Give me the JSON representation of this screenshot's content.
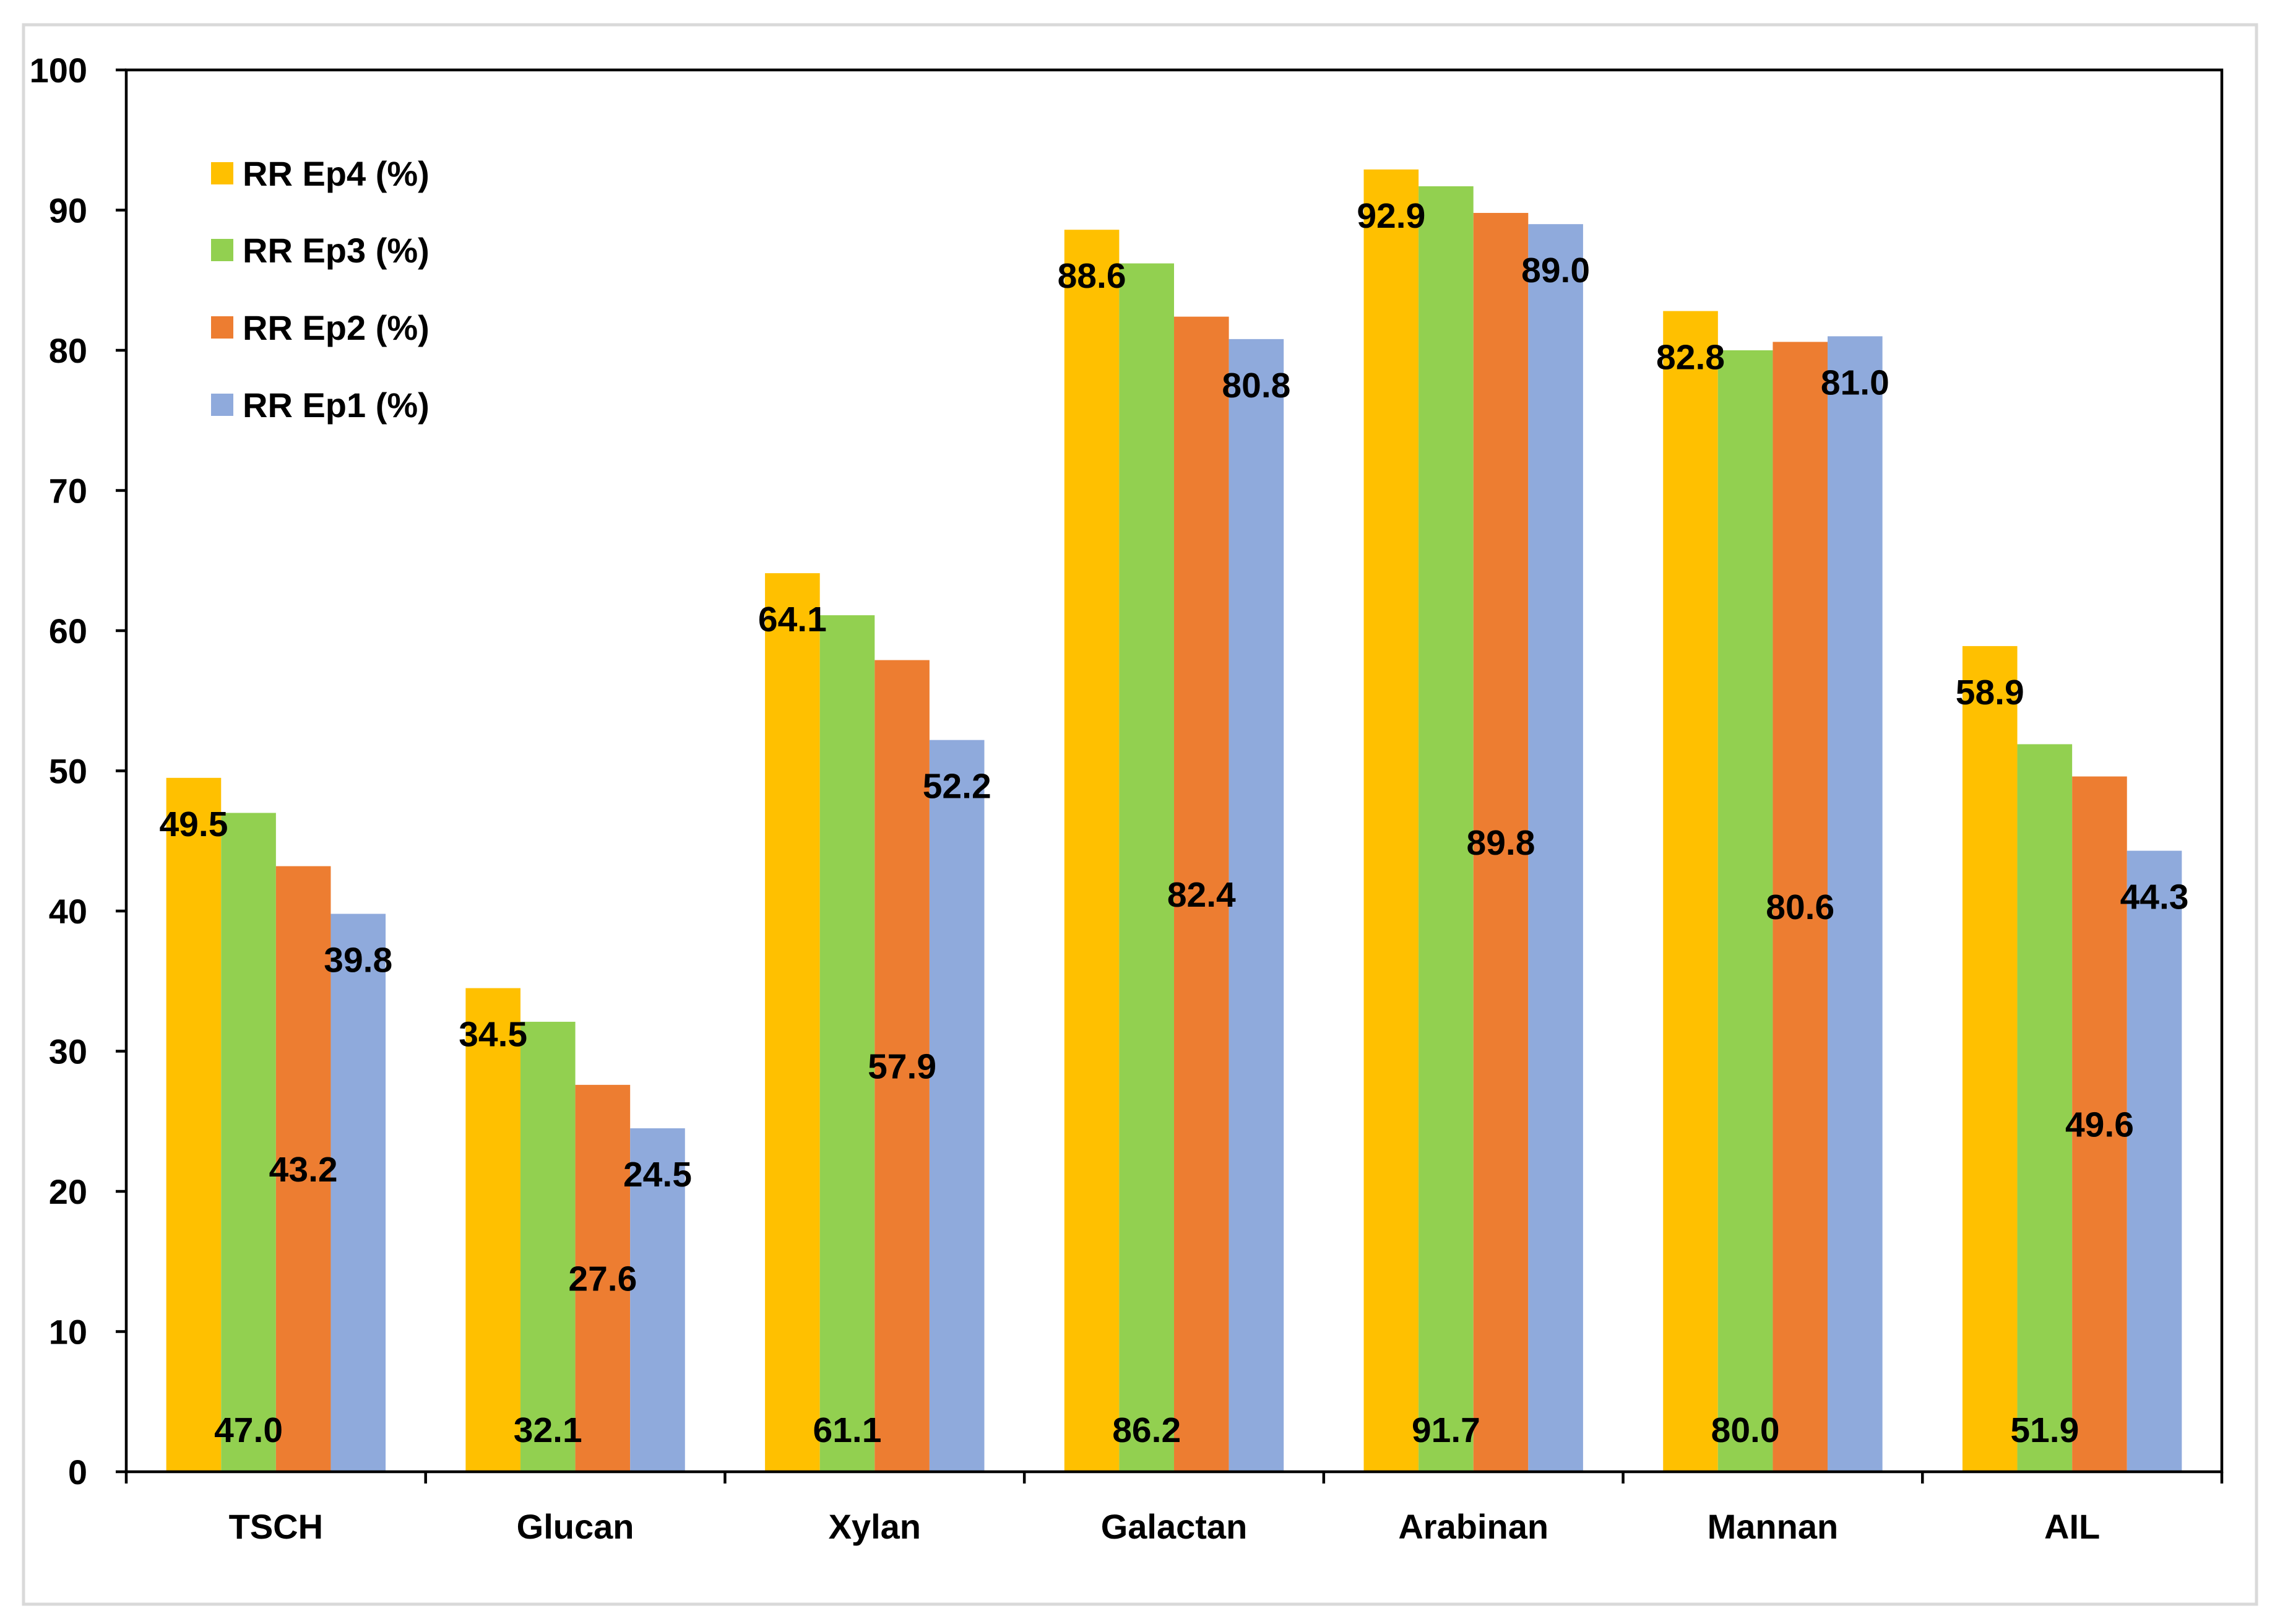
{
  "chart_data": {
    "type": "bar",
    "categories": [
      "TSCH",
      "Glucan",
      "Xylan",
      "Galactan",
      "Arabinan",
      "Mannan",
      "AIL"
    ],
    "series": [
      {
        "name": "RR Ep4 (%)",
        "color": "#FFC000",
        "values": [
          49.5,
          34.5,
          64.1,
          88.6,
          92.9,
          82.8,
          58.9
        ]
      },
      {
        "name": "RR Ep3 (%)",
        "color": "#92D050",
        "values": [
          47.0,
          32.1,
          61.1,
          86.2,
          91.7,
          80.0,
          51.9
        ]
      },
      {
        "name": "RR Ep2 (%)",
        "color": "#ED7D31",
        "values": [
          43.2,
          27.6,
          57.9,
          82.4,
          89.8,
          80.6,
          49.6
        ]
      },
      {
        "name": "RR Ep1 (%)",
        "color": "#8FAADC",
        "values": [
          39.8,
          24.5,
          52.2,
          80.8,
          89.0,
          81.0,
          44.3
        ]
      }
    ],
    "ylim": [
      0,
      100
    ],
    "yticks": [
      0,
      10,
      20,
      30,
      40,
      50,
      60,
      70,
      80,
      90,
      100
    ],
    "legend": "top-left",
    "grid": false,
    "data_labels": true
  }
}
